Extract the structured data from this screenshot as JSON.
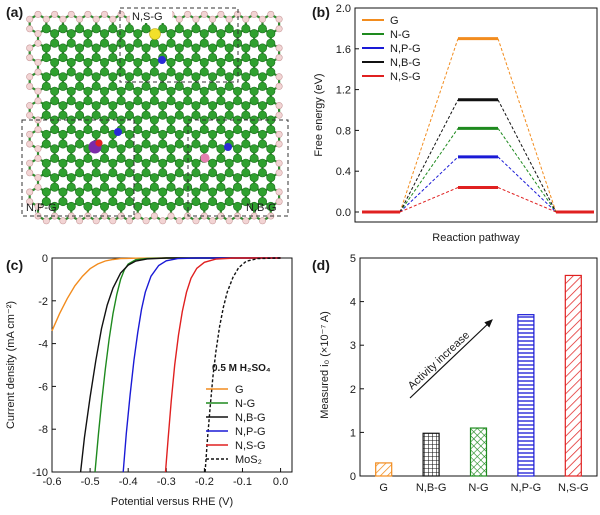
{
  "panels": {
    "a": "(a)",
    "b": "(b)",
    "c": "(c)",
    "d": "(d)"
  },
  "structure": {
    "regions": [
      "N,S-G",
      "N,P-G",
      "N,B-G"
    ]
  },
  "chart_data": [
    {
      "panel": "b",
      "type": "line",
      "xlabel": "Reaction pathway",
      "ylabel": "Free energy (eV)",
      "ylim": [
        0.0,
        2.0
      ],
      "yticks": [
        "0.0",
        "0.4",
        "0.8",
        "1.2",
        "1.6",
        "2.0"
      ],
      "legend_placement": "top-left",
      "series": [
        {
          "name": "G",
          "values": [
            0.0,
            1.7,
            0.0
          ],
          "color": "#f28c1e"
        },
        {
          "name": "N-G",
          "values": [
            0.0,
            0.82,
            0.0
          ],
          "color": "#1e8a1e"
        },
        {
          "name": "N,P-G",
          "values": [
            0.0,
            0.54,
            0.0
          ],
          "color": "#1a1ad6"
        },
        {
          "name": "N,B-G",
          "values": [
            0.0,
            1.1,
            0.0
          ],
          "color": "#111111"
        },
        {
          "name": "N,S-G",
          "values": [
            0.0,
            0.24,
            0.0
          ],
          "color": "#e02020"
        }
      ]
    },
    {
      "panel": "c",
      "type": "line",
      "xlabel": "Potential versus RHE (V)",
      "ylabel": "Current density (mA cm⁻²)",
      "xlim": [
        -0.6,
        0.03
      ],
      "ylim": [
        -10,
        0
      ],
      "xticks": [
        "-0.6",
        "-0.5",
        "-0.4",
        "-0.3",
        "-0.2",
        "-0.1",
        "0.0"
      ],
      "yticks": [
        "0",
        "-2",
        "-4",
        "-6",
        "-8",
        "-10"
      ],
      "legend_title": "0.5 M H₂SO₄",
      "legend_placement": "bottom-right",
      "series": [
        {
          "name": "G",
          "color": "#f28c1e",
          "dash": false,
          "points": [
            [
              -0.6,
              -3.4
            ],
            [
              -0.58,
              -2.6
            ],
            [
              -0.56,
              -1.9
            ],
            [
              -0.54,
              -1.3
            ],
            [
              -0.52,
              -0.85
            ],
            [
              -0.5,
              -0.5
            ],
            [
              -0.48,
              -0.28
            ],
            [
              -0.46,
              -0.14
            ],
            [
              -0.44,
              -0.07
            ],
            [
              -0.42,
              -0.03
            ],
            [
              -0.38,
              -0.01
            ],
            [
              -0.3,
              0.0
            ],
            [
              0.0,
              0.0
            ]
          ]
        },
        {
          "name": "N-G",
          "color": "#1e8a1e",
          "dash": false,
          "points": [
            [
              -0.487,
              -10
            ],
            [
              -0.478,
              -8.2
            ],
            [
              -0.47,
              -6.8
            ],
            [
              -0.46,
              -5.2
            ],
            [
              -0.45,
              -3.8
            ],
            [
              -0.44,
              -2.6
            ],
            [
              -0.43,
              -1.7
            ],
            [
              -0.42,
              -1.0
            ],
            [
              -0.41,
              -0.55
            ],
            [
              -0.4,
              -0.28
            ],
            [
              -0.38,
              -0.08
            ],
            [
              -0.35,
              -0.02
            ],
            [
              -0.3,
              0.0
            ],
            [
              0.0,
              0.0
            ]
          ]
        },
        {
          "name": "N,B-G",
          "color": "#111111",
          "dash": false,
          "points": [
            [
              -0.525,
              -10
            ],
            [
              -0.515,
              -8.4
            ],
            [
              -0.5,
              -6.5
            ],
            [
              -0.485,
              -4.8
            ],
            [
              -0.47,
              -3.3
            ],
            [
              -0.455,
              -2.2
            ],
            [
              -0.44,
              -1.4
            ],
            [
              -0.42,
              -0.7
            ],
            [
              -0.4,
              -0.33
            ],
            [
              -0.38,
              -0.14
            ],
            [
              -0.35,
              -0.04
            ],
            [
              -0.3,
              0.0
            ],
            [
              0.0,
              0.0
            ]
          ]
        },
        {
          "name": "N,P-G",
          "color": "#1a1ad6",
          "dash": false,
          "points": [
            [
              -0.413,
              -10
            ],
            [
              -0.405,
              -8.2
            ],
            [
              -0.395,
              -6.4
            ],
            [
              -0.385,
              -4.8
            ],
            [
              -0.375,
              -3.5
            ],
            [
              -0.365,
              -2.4
            ],
            [
              -0.355,
              -1.6
            ],
            [
              -0.34,
              -0.85
            ],
            [
              -0.32,
              -0.35
            ],
            [
              -0.3,
              -0.13
            ],
            [
              -0.27,
              -0.03
            ],
            [
              -0.22,
              0.0
            ],
            [
              0.0,
              0.0
            ]
          ]
        },
        {
          "name": "N,S-G",
          "color": "#e02020",
          "dash": false,
          "points": [
            [
              -0.302,
              -10
            ],
            [
              -0.295,
              -8.4
            ],
            [
              -0.287,
              -6.7
            ],
            [
              -0.278,
              -5.0
            ],
            [
              -0.268,
              -3.6
            ],
            [
              -0.258,
              -2.5
            ],
            [
              -0.247,
              -1.6
            ],
            [
              -0.235,
              -0.95
            ],
            [
              -0.22,
              -0.48
            ],
            [
              -0.2,
              -0.2
            ],
            [
              -0.17,
              -0.05
            ],
            [
              -0.12,
              0.0
            ],
            [
              0.0,
              0.0
            ]
          ]
        },
        {
          "name": "MoS₂",
          "color": "#111111",
          "dash": true,
          "points": [
            [
              -0.198,
              -10
            ],
            [
              -0.192,
              -8.5
            ],
            [
              -0.185,
              -7.0
            ],
            [
              -0.178,
              -5.6
            ],
            [
              -0.17,
              -4.4
            ],
            [
              -0.16,
              -3.2
            ],
            [
              -0.15,
              -2.3
            ],
            [
              -0.14,
              -1.6
            ],
            [
              -0.125,
              -0.9
            ],
            [
              -0.11,
              -0.45
            ],
            [
              -0.09,
              -0.15
            ],
            [
              -0.06,
              -0.03
            ],
            [
              0.0,
              0.0
            ]
          ]
        }
      ]
    },
    {
      "panel": "d",
      "type": "bar",
      "ylabel": "Measured i₀ (×10⁻⁷ A)",
      "ylim": [
        0,
        5
      ],
      "yticks": [
        "0",
        "1",
        "2",
        "3",
        "4",
        "5"
      ],
      "categories": [
        "G",
        "N,B-G",
        "N-G",
        "N,P-G",
        "N,S-G"
      ],
      "values": [
        0.3,
        0.98,
        1.1,
        3.7,
        4.6
      ],
      "colors": [
        "#f28c1e",
        "#111111",
        "#1e8a1e",
        "#1a1ad6",
        "#e02020"
      ],
      "patterns": [
        "diagonal",
        "grid",
        "crosshatch",
        "horizontal",
        "diagonal"
      ],
      "annotation": "Activity increase"
    }
  ]
}
